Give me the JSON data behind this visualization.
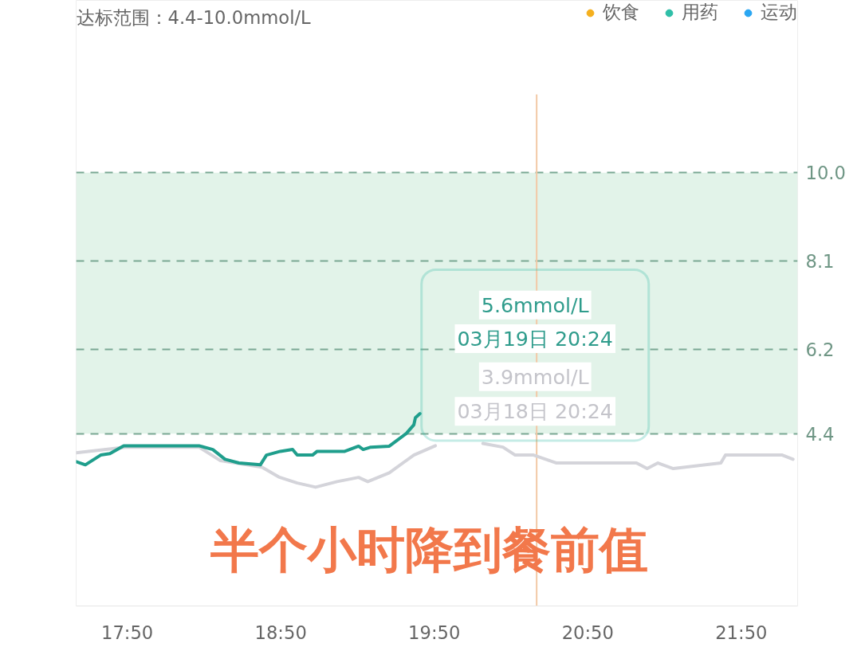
{
  "chart_data": {
    "type": "line",
    "title": "达标范围：4.4-10.0mmol/L",
    "xlim": [
      17.5,
      22.2
    ],
    "ylim": [
      0.7,
      13.7
    ],
    "xticks": [
      {
        "value": 17.833,
        "label": "17:50"
      },
      {
        "value": 18.833,
        "label": "18:50"
      },
      {
        "value": 19.833,
        "label": "19:50"
      },
      {
        "value": 20.833,
        "label": "20:50"
      },
      {
        "value": 21.833,
        "label": "21:50"
      }
    ],
    "yticks": [
      4.4,
      6.2,
      8.1,
      {
        "value": 10.0,
        "label": "10.0"
      }
    ],
    "grid": "y",
    "legend": "top",
    "tick_labels": "xy",
    "marker": "none",
    "line_style": "solid",
    "bands": [
      {
        "axis": "y",
        "from": 4.4,
        "to": 10.0,
        "color": "#e2f3e9"
      }
    ],
    "ref_lines": [
      {
        "axis": "x",
        "value": 20.5,
        "color": "#f2c9a6"
      }
    ],
    "series": [
      {
        "type": "scatter",
        "name": "饮食",
        "color": "#f5b01e"
      },
      {
        "type": "scatter",
        "name": "用药",
        "color": "#2fbfa8"
      },
      {
        "type": "scatter",
        "name": "运动",
        "color": "#2aa6f2"
      },
      {
        "color": "#d4d4da",
        "x": [
          17.5,
          17.82,
          18.3,
          18.44,
          18.71,
          18.82,
          18.94,
          19.06,
          19.2,
          19.34,
          19.4,
          19.54,
          19.7,
          19.84,
          20.0,
          20.15,
          20.28,
          20.36,
          20.48,
          20.63,
          21.15,
          21.22,
          21.29,
          21.39,
          21.7,
          21.73,
          22.1,
          22.17
        ],
        "values": [
          3.99,
          4.11,
          4.11,
          3.82,
          3.68,
          3.47,
          3.34,
          3.25,
          3.37,
          3.46,
          3.37,
          3.56,
          3.94,
          4.14,
          null,
          4.19,
          4.11,
          3.94,
          3.94,
          3.77,
          3.77,
          3.65,
          3.77,
          3.65,
          3.77,
          3.94,
          3.94,
          3.85
        ]
      },
      {
        "color": "#1f9e8c",
        "x": [
          17.5,
          17.56,
          17.66,
          17.72,
          17.81,
          18.3,
          18.39,
          18.47,
          18.56,
          18.7,
          18.74,
          18.83,
          18.91,
          18.94,
          19.04,
          19.07,
          19.25,
          19.34,
          19.37,
          19.42,
          19.54,
          19.65,
          19.7,
          19.71,
          19.74
        ],
        "values": [
          3.8,
          3.73,
          3.94,
          3.97,
          4.14,
          4.14,
          4.06,
          3.85,
          3.77,
          3.73,
          3.94,
          4.02,
          4.06,
          3.94,
          3.94,
          4.02,
          4.02,
          4.13,
          4.06,
          4.11,
          4.13,
          4.4,
          4.59,
          4.74,
          4.83
        ]
      }
    ],
    "annotations": [
      "5.6mmol/L",
      "03月19日 20:24",
      "3.9mmol/L",
      "03月18日 20:24",
      "半个小时降到餐前值"
    ]
  }
}
